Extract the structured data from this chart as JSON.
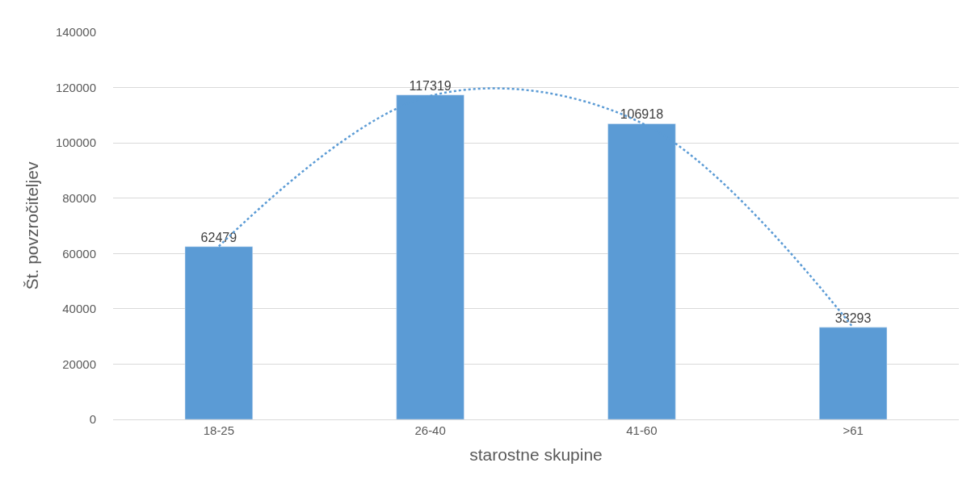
{
  "chart_data": {
    "type": "bar",
    "xlabel": "starostne skupine",
    "ylabel": "Št. povzročiteljev",
    "categories": [
      "18-25",
      "26-40",
      "41-60",
      ">61"
    ],
    "series": [
      {
        "color": "#5b9bd5",
        "values": [
          62479,
          117319,
          106918,
          33293
        ],
        "value_labels": [
          "62479",
          "117319",
          "106918",
          "33293"
        ]
      },
      {
        "type": "line",
        "color": "#5b9bd5",
        "line_style": "dotted",
        "marker": "none",
        "values": [
          62600,
          117000,
          107200,
          33200
        ]
      }
    ],
    "ylim": [
      0,
      140000
    ],
    "yticks": [
      0,
      20000,
      40000,
      60000,
      80000,
      100000,
      120000,
      140000
    ],
    "grid": "y"
  }
}
